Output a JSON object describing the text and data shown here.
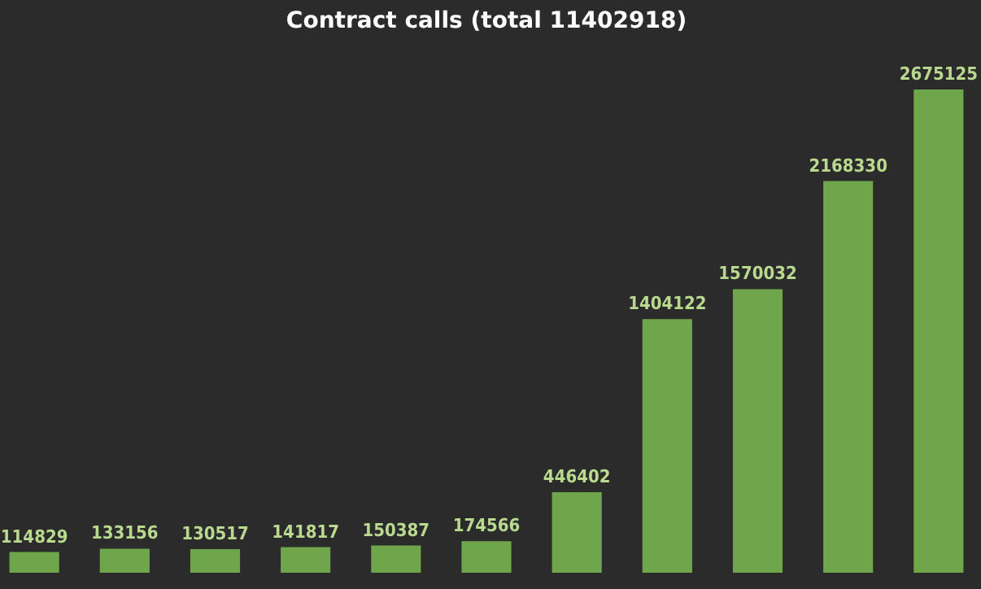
{
  "chart_data": {
    "type": "bar",
    "title": "Contract calls (total 11402918)",
    "categories": [
      null,
      null,
      null,
      null,
      null,
      null,
      null,
      null,
      null,
      null,
      null
    ],
    "values": [
      114829,
      133156,
      130517,
      141817,
      150387,
      174566,
      446402,
      1404122,
      1570032,
      2168330,
      2675125
    ],
    "color": "#70a64b",
    "data_labels": true
  }
}
